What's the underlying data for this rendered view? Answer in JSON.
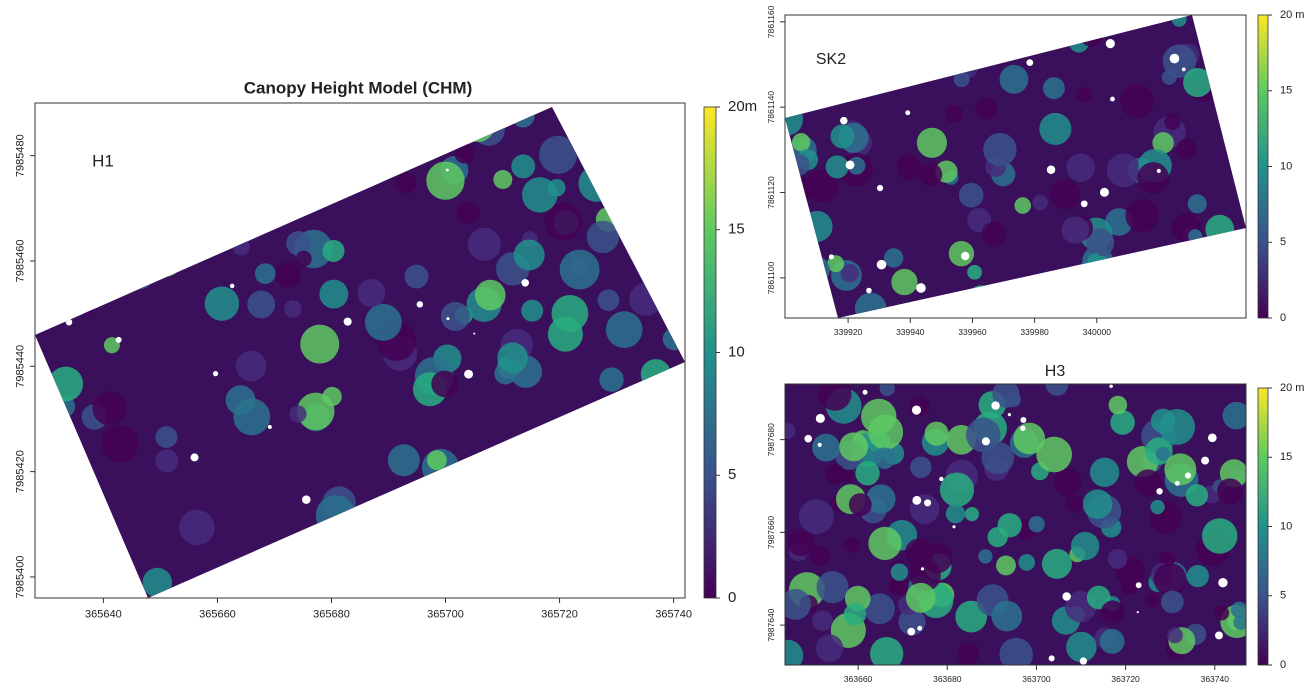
{
  "chart_data": [
    {
      "type": "raster",
      "title": "Canopy Height Model (CHM)",
      "label": "H1",
      "colormap": "viridis",
      "xlim": [
        365628,
        365742
      ],
      "xticks": [
        365640,
        365660,
        365680,
        365700,
        365720,
        365740
      ],
      "ylim": [
        7985396,
        7985490
      ],
      "yticks": [
        7985400,
        7985420,
        7985440,
        7985460,
        7985480
      ],
      "clim": [
        0,
        20
      ],
      "cticks": [
        0,
        5,
        10,
        15,
        {
          "value": 20,
          "label": "20m"
        }
      ]
    },
    {
      "type": "raster",
      "label": "SK2",
      "colormap": "viridis",
      "xlim": [
        339899.7,
        340048
      ],
      "xticks": [
        339920,
        339940,
        339960,
        339980,
        340000
      ],
      "ylim": [
        7861090.6,
        7861161.6
      ],
      "yticks": [
        7861100,
        7861120,
        7861140,
        7861160
      ],
      "clim": [
        0,
        20
      ],
      "cticks": [
        0,
        5,
        10,
        15,
        {
          "value": 20,
          "label": "20 m"
        }
      ]
    },
    {
      "type": "raster",
      "title": "H3",
      "colormap": "viridis",
      "xlim": [
        363643.6,
        363747
      ],
      "xticks": [
        363660,
        363680,
        363700,
        363720,
        363740
      ],
      "ylim": [
        7987631.4,
        7987692
      ],
      "yticks": [
        7987640,
        7987660,
        7987680
      ],
      "clim": [
        0,
        20
      ],
      "cticks": [
        0,
        5,
        10,
        15,
        {
          "value": 20,
          "label": "20 m"
        }
      ]
    }
  ]
}
